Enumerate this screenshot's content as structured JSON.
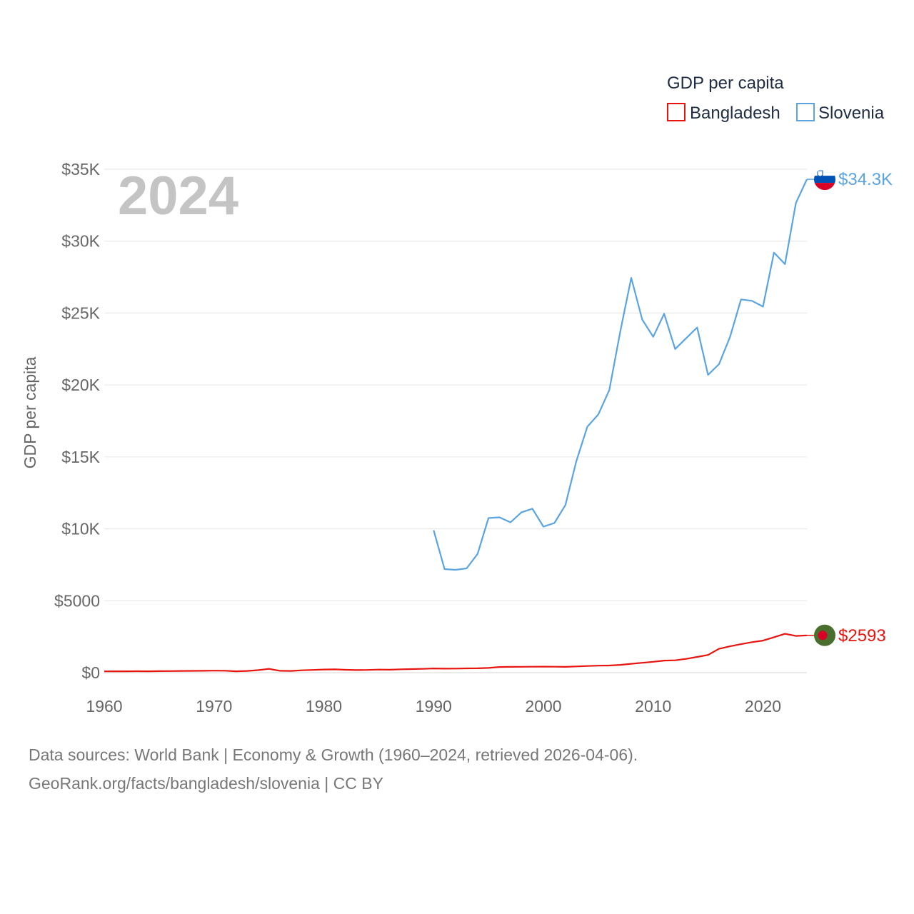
{
  "chart_data": {
    "type": "line",
    "title": "",
    "year_label": "2024",
    "ylabel": "GDP per capita",
    "xlabel": "",
    "xlim": [
      1960,
      2024
    ],
    "ylim": [
      0,
      35000
    ],
    "y_ticks": [
      0,
      5000,
      10000,
      15000,
      20000,
      25000,
      30000,
      35000
    ],
    "y_tick_labels": [
      "$0",
      "$5000",
      "$10K",
      "$15K",
      "$20K",
      "$25K",
      "$30K",
      "$35K"
    ],
    "x_ticks": [
      1960,
      1970,
      1980,
      1990,
      2000,
      2010,
      2020
    ],
    "x_tick_labels": [
      "1960",
      "1970",
      "1980",
      "1990",
      "2000",
      "2010",
      "2020"
    ],
    "legend": {
      "title": "GDP per capita",
      "position": "top-right"
    },
    "series": [
      {
        "name": "Bangladesh",
        "color": "#e8140f",
        "end_label": "$2593",
        "x": [
          1960,
          1961,
          1962,
          1963,
          1964,
          1965,
          1966,
          1967,
          1968,
          1969,
          1970,
          1971,
          1972,
          1973,
          1974,
          1975,
          1976,
          1977,
          1978,
          1979,
          1980,
          1981,
          1982,
          1983,
          1984,
          1985,
          1986,
          1987,
          1988,
          1989,
          1990,
          1991,
          1992,
          1993,
          1994,
          1995,
          1996,
          1997,
          1998,
          1999,
          2000,
          2001,
          2002,
          2003,
          2004,
          2005,
          2006,
          2007,
          2008,
          2009,
          2010,
          2011,
          2012,
          2013,
          2014,
          2015,
          2016,
          2017,
          2018,
          2019,
          2020,
          2021,
          2022,
          2023,
          2024
        ],
        "values": [
          89,
          93,
          96,
          100,
          96,
          103,
          110,
          117,
          122,
          129,
          138,
          132,
          96,
          118,
          174,
          262,
          131,
          121,
          166,
          190,
          218,
          226,
          201,
          180,
          190,
          214,
          205,
          234,
          248,
          262,
          294,
          279,
          281,
          300,
          303,
          329,
          392,
          404,
          406,
          412,
          418,
          410,
          402,
          433,
          462,
          485,
          496,
          541,
          616,
          683,
          757,
          840,
          860,
          960,
          1090,
          1230,
          1660,
          1830,
          1980,
          2120,
          2230,
          2460,
          2700,
          2550,
          2593
        ]
      },
      {
        "name": "Slovenia",
        "color": "#5ba4e0",
        "end_label": "$34.3K",
        "x": [
          1990,
          1991,
          1992,
          1993,
          1994,
          1995,
          1996,
          1997,
          1998,
          1999,
          2000,
          2001,
          2002,
          2003,
          2004,
          2005,
          2006,
          2007,
          2008,
          2009,
          2010,
          2011,
          2012,
          2013,
          2014,
          2015,
          2016,
          2017,
          2018,
          2019,
          2020,
          2021,
          2022,
          2023,
          2024
        ],
        "values": [
          9900,
          7200,
          7150,
          7250,
          8250,
          10750,
          10800,
          10450,
          11150,
          11400,
          10150,
          10400,
          11650,
          14700,
          17100,
          17950,
          19650,
          23700,
          27450,
          24550,
          23350,
          24950,
          22500,
          23250,
          24000,
          20700,
          21450,
          23350,
          25950,
          25850,
          25450,
          29200,
          28400,
          32650,
          34300
        ]
      }
    ]
  },
  "footer": {
    "line1": "Data sources: World Bank | Economy & Growth (1960–2024, retrieved 2026-04-06).",
    "line2": "GeoRank.org/facts/bangladesh/slovenia | CC BY"
  }
}
